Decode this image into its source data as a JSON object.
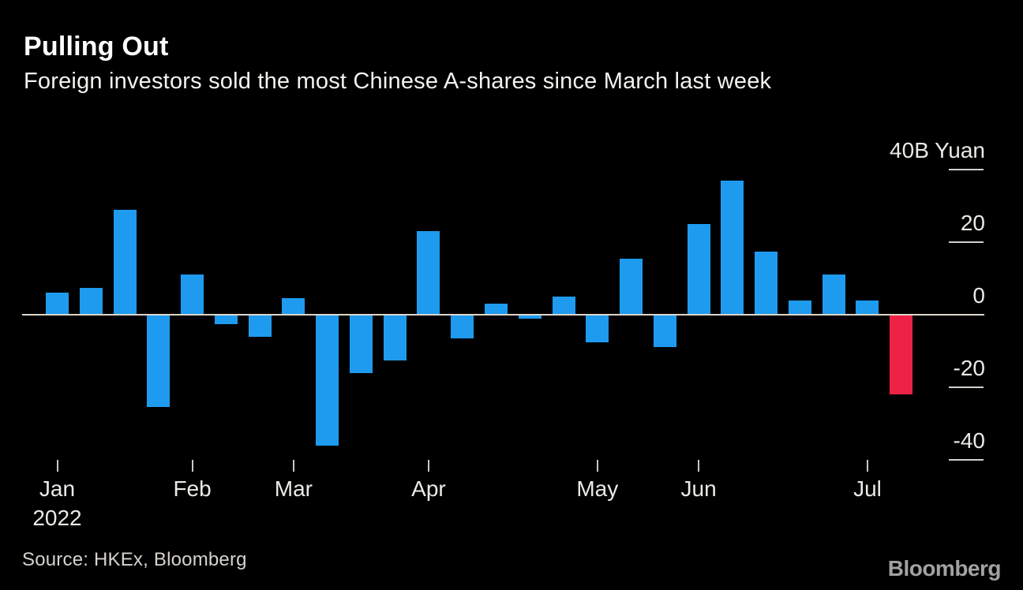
{
  "chart_data": {
    "type": "bar",
    "title": "Pulling Out",
    "subtitle": "Foreign investors sold the most Chinese A-shares since March last week",
    "unit_label": "40B Yuan",
    "ylim": [
      -45,
      42
    ],
    "grid": false,
    "legend_position": "none",
    "y_ticks": [
      {
        "value": 40,
        "label": "40B Yuan"
      },
      {
        "value": 20,
        "label": "20"
      },
      {
        "value": 0,
        "label": "0"
      },
      {
        "value": -20,
        "label": "-20"
      },
      {
        "value": -40,
        "label": "-40"
      }
    ],
    "x_axis": {
      "months": [
        {
          "label": "Jan",
          "sublabel": "2022",
          "start_week": 1
        },
        {
          "label": "Feb",
          "start_week": 5
        },
        {
          "label": "Mar",
          "start_week": 8
        },
        {
          "label": "Apr",
          "start_week": 12
        },
        {
          "label": "May",
          "start_week": 17
        },
        {
          "label": "Jun",
          "start_week": 20
        },
        {
          "label": "Jul",
          "start_week": 25
        }
      ]
    },
    "values": [
      6,
      7.5,
      29,
      -25.5,
      11,
      -2.5,
      -6,
      4.5,
      -36,
      -16,
      -12.5,
      23,
      -6.5,
      3,
      -1,
      5,
      -7.5,
      15.5,
      -9,
      25,
      37,
      17.5,
      4,
      11,
      4,
      -22
    ],
    "highlight_index": 25,
    "colors": {
      "bar": "#1e9bef",
      "highlight": "#ee2245",
      "axis_line": "#dcd6cb",
      "tick": "#cfcdc8",
      "label": "#eceae5"
    }
  },
  "footer": {
    "source": "Source: HKEx, Bloomberg",
    "logo": "Bloomberg"
  }
}
